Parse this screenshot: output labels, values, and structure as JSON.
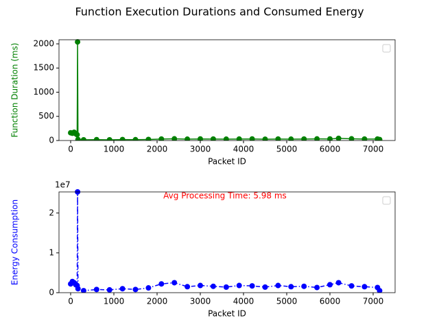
{
  "title": "Function Execution Durations and Consumed Energy",
  "chart_data": [
    {
      "type": "line",
      "marker": "circle",
      "color": "#008000",
      "linestyle": "solid",
      "xlabel": "Packet ID",
      "ylabel": "Function Duration (ms)",
      "legend": "upper right",
      "x": [
        0,
        40,
        80,
        120,
        150,
        160,
        170,
        300,
        600,
        900,
        1200,
        1500,
        1800,
        2100,
        2400,
        2700,
        3000,
        3300,
        3600,
        3900,
        4200,
        4500,
        4800,
        5100,
        5400,
        5700,
        6000,
        6200,
        6500,
        6800,
        7100,
        7150
      ],
      "values": [
        160,
        150,
        170,
        140,
        120,
        2040,
        20,
        15,
        18,
        15,
        20,
        17,
        22,
        30,
        35,
        28,
        32,
        30,
        28,
        30,
        32,
        27,
        30,
        28,
        30,
        33,
        32,
        45,
        35,
        30,
        30,
        20
      ],
      "xlim": [
        -270,
        7508
      ],
      "xticks": [
        0,
        1000,
        2000,
        3000,
        4000,
        5000,
        6000,
        7000
      ],
      "ylim": [
        0,
        2085
      ],
      "yticks": [
        0,
        500,
        1000,
        1500,
        2000
      ]
    },
    {
      "type": "line",
      "marker": "circle",
      "color": "#0000ff",
      "linestyle": "dashdot",
      "xlabel": "Packet ID",
      "ylabel": "Energy Consumption",
      "y_offset_label": "1e7",
      "legend": "upper right",
      "annotation": "Avg Processing Time: 5.98 ms",
      "annotation_color": "#ff0000",
      "x": [
        0,
        40,
        80,
        120,
        150,
        160,
        170,
        300,
        600,
        900,
        1200,
        1500,
        1800,
        2100,
        2400,
        2700,
        3000,
        3300,
        3600,
        3900,
        4200,
        4500,
        4800,
        5100,
        5400,
        5700,
        6000,
        6200,
        6500,
        6800,
        7100,
        7150
      ],
      "values": [
        0.22,
        0.28,
        0.25,
        0.2,
        0.18,
        2.53,
        0.1,
        0.05,
        0.08,
        0.07,
        0.1,
        0.08,
        0.12,
        0.22,
        0.25,
        0.15,
        0.18,
        0.16,
        0.14,
        0.18,
        0.17,
        0.14,
        0.18,
        0.15,
        0.16,
        0.13,
        0.2,
        0.25,
        0.17,
        0.15,
        0.13,
        0.05
      ],
      "xlim": [
        -270,
        7508
      ],
      "xticks": [
        0,
        1000,
        2000,
        3000,
        4000,
        5000,
        6000,
        7000
      ],
      "ylim": [
        0,
        2.53
      ],
      "yticks": [
        0,
        1,
        2
      ]
    }
  ]
}
